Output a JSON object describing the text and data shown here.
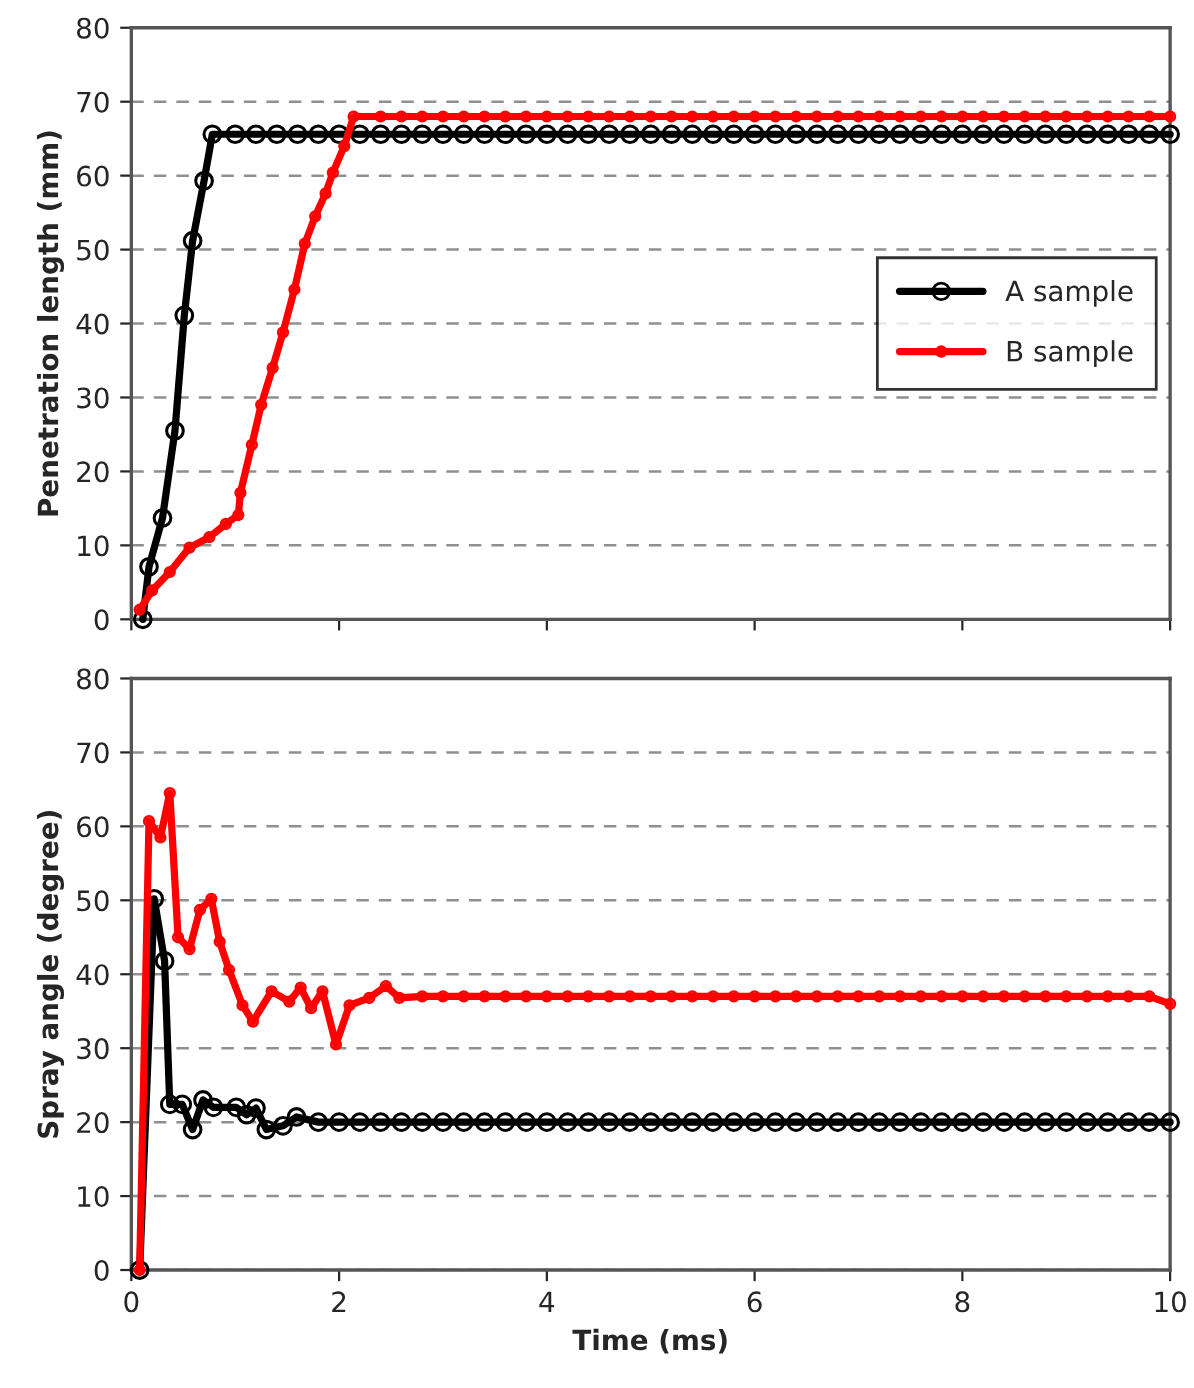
{
  "chart_data": [
    {
      "type": "line",
      "ylabel": "Penetration length (mm)",
      "xlim": [
        0,
        10
      ],
      "ylim": [
        0,
        80
      ],
      "xticks": [
        0,
        2,
        4,
        6,
        8,
        10
      ],
      "yticks": [
        0,
        10,
        20,
        30,
        40,
        50,
        60,
        70,
        80
      ],
      "tick_labels": "y",
      "grid": "y",
      "legend": "center right",
      "marker": "circle",
      "line_style": "solid",
      "series": [
        {
          "name": "A sample",
          "color": "#000000",
          "x": [
            0.11,
            0.17,
            0.3,
            0.42,
            0.51,
            0.59,
            0.7,
            0.78,
            1.0,
            1.2,
            1.4,
            1.6,
            1.8,
            2.0,
            2.2,
            2.4,
            2.6,
            2.8,
            3.0,
            3.2,
            3.4,
            3.6,
            3.8,
            4.0,
            4.2,
            4.4,
            4.6,
            4.8,
            5.0,
            5.2,
            5.4,
            5.6,
            5.8,
            6.0,
            6.2,
            6.4,
            6.6,
            6.8,
            7.0,
            7.2,
            7.4,
            7.6,
            7.8,
            8.0,
            8.2,
            8.4,
            8.6,
            8.8,
            9.0,
            9.2,
            9.4,
            9.6,
            9.8,
            10.0
          ],
          "values": [
            0,
            7.1,
            13.7,
            25.5,
            41.1,
            51.2,
            59.3,
            65.6,
            65.6,
            65.6,
            65.6,
            65.6,
            65.6,
            65.6,
            65.6,
            65.6,
            65.6,
            65.6,
            65.6,
            65.6,
            65.6,
            65.6,
            65.6,
            65.6,
            65.6,
            65.6,
            65.6,
            65.6,
            65.6,
            65.6,
            65.6,
            65.6,
            65.6,
            65.6,
            65.6,
            65.6,
            65.6,
            65.6,
            65.6,
            65.6,
            65.6,
            65.6,
            65.6,
            65.6,
            65.6,
            65.6,
            65.6,
            65.6,
            65.6,
            65.6,
            65.6,
            65.6,
            65.6,
            65.6
          ]
        },
        {
          "name": "B sample",
          "color": "#ff0000",
          "x": [
            0.08,
            0.2,
            0.37,
            0.56,
            0.75,
            0.91,
            1.03,
            1.05,
            1.16,
            1.25,
            1.36,
            1.46,
            1.57,
            1.67,
            1.77,
            1.87,
            1.94,
            2.05,
            2.14,
            2.4,
            2.6,
            2.8,
            3.0,
            3.2,
            3.4,
            3.6,
            3.8,
            4.0,
            4.2,
            4.4,
            4.6,
            4.8,
            5.0,
            5.2,
            5.4,
            5.6,
            5.8,
            6.0,
            6.2,
            6.4,
            6.6,
            6.8,
            7.0,
            7.2,
            7.4,
            7.6,
            7.8,
            8.0,
            8.2,
            8.4,
            8.6,
            8.8,
            9.0,
            9.2,
            9.4,
            9.6,
            9.8,
            10.0
          ],
          "values": [
            1.3,
            3.9,
            6.4,
            9.7,
            11.1,
            12.9,
            14.1,
            17.1,
            23.6,
            29,
            34,
            38.8,
            44.6,
            50.8,
            54.5,
            57.6,
            60.4,
            64,
            68,
            68,
            68,
            68,
            68,
            68,
            68,
            68,
            68,
            68,
            68,
            68,
            68,
            68,
            68,
            68,
            68,
            68,
            68,
            68,
            68,
            68,
            68,
            68,
            68,
            68,
            68,
            68,
            68,
            68,
            68,
            68,
            68,
            68,
            68,
            68,
            68,
            68,
            68,
            68
          ]
        }
      ]
    },
    {
      "type": "line",
      "xlabel": "Time (ms)",
      "ylabel": "Spray angle (degree)",
      "xlim": [
        0,
        10
      ],
      "ylim": [
        0,
        80
      ],
      "xticks": [
        0,
        2,
        4,
        6,
        8,
        10
      ],
      "yticks": [
        0,
        10,
        20,
        30,
        40,
        50,
        60,
        70,
        80
      ],
      "grid": "y",
      "marker": "circle",
      "line_style": "solid",
      "series": [
        {
          "color": "#000000",
          "x": [
            0.08,
            0.22,
            0.32,
            0.37,
            0.49,
            0.59,
            0.69,
            0.79,
            1.01,
            1.11,
            1.2,
            1.3,
            1.46,
            1.59,
            1.8,
            2.0,
            2.2,
            2.4,
            2.6,
            2.8,
            3.0,
            3.2,
            3.4,
            3.6,
            3.8,
            4.0,
            4.2,
            4.4,
            4.6,
            4.8,
            5.0,
            5.2,
            5.4,
            5.6,
            5.8,
            6.0,
            6.2,
            6.4,
            6.6,
            6.8,
            7.0,
            7.2,
            7.4,
            7.6,
            7.8,
            8.0,
            8.2,
            8.4,
            8.6,
            8.8,
            9.0,
            9.2,
            9.4,
            9.6,
            9.8,
            10.0
          ],
          "values": [
            0,
            50.2,
            41.8,
            22.4,
            22.4,
            19,
            23,
            22,
            22,
            21,
            21.9,
            19,
            19.5,
            20.7,
            20,
            20,
            20,
            20,
            20,
            20,
            20,
            20,
            20,
            20,
            20,
            20,
            20,
            20,
            20,
            20,
            20,
            20,
            20,
            20,
            20,
            20,
            20,
            20,
            20,
            20,
            20,
            20,
            20,
            20,
            20,
            20,
            20,
            20,
            20,
            20,
            20,
            20,
            20,
            20,
            20,
            20
          ]
        },
        {
          "color": "#ff0000",
          "x": [
            0.08,
            0.17,
            0.28,
            0.37,
            0.45,
            0.56,
            0.66,
            0.77,
            0.85,
            0.94,
            1.07,
            1.17,
            1.35,
            1.52,
            1.63,
            1.73,
            1.84,
            1.97,
            2.1,
            2.29,
            2.45,
            2.58,
            2.8,
            3.0,
            3.2,
            3.4,
            3.6,
            3.8,
            4.0,
            4.2,
            4.4,
            4.6,
            4.8,
            5.0,
            5.2,
            5.4,
            5.6,
            5.8,
            6.0,
            6.2,
            6.4,
            6.6,
            6.8,
            7.0,
            7.2,
            7.4,
            7.6,
            7.8,
            8.0,
            8.2,
            8.4,
            8.6,
            8.8,
            9.0,
            9.2,
            9.4,
            9.6,
            9.8,
            10.0
          ],
          "values": [
            0,
            60.7,
            58.5,
            64.5,
            45,
            43.4,
            48.7,
            50.2,
            44.4,
            40.6,
            35.8,
            33.6,
            37.7,
            36.3,
            38.2,
            35.4,
            37.7,
            30.5,
            35.8,
            36.8,
            38.4,
            36.8,
            37,
            37,
            37,
            37,
            37,
            37,
            37,
            37,
            37,
            37,
            37,
            37,
            37,
            37,
            37,
            37,
            37,
            37,
            37,
            37,
            37,
            37,
            37,
            37,
            37,
            37,
            37,
            37,
            37,
            37,
            37,
            37,
            37,
            37,
            37,
            37,
            36
          ]
        }
      ]
    }
  ]
}
